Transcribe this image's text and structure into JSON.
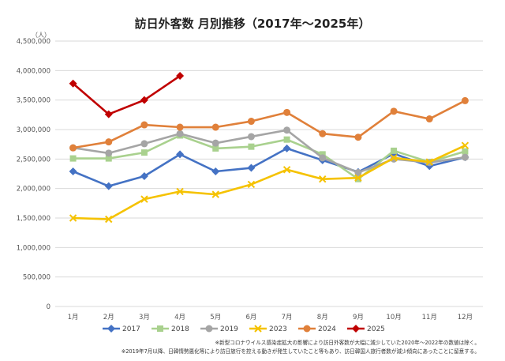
{
  "chart_data": {
    "type": "line",
    "title": "訪日外客数 月別推移（2017年～2025年）",
    "unit_label": "（人）",
    "categories": [
      "1月",
      "2月",
      "3月",
      "4月",
      "5月",
      "6月",
      "7月",
      "8月",
      "9月",
      "10月",
      "11月",
      "12月"
    ],
    "ylim": [
      0,
      4500000
    ],
    "y_ticks": [
      "0",
      "500,000",
      "1,000,000",
      "1,500,000",
      "2,000,000",
      "2,500,000",
      "3,000,000",
      "3,500,000",
      "4,000,000",
      "4,500,000"
    ],
    "grid": true,
    "legend_position": "bottom",
    "series": [
      {
        "name": "2017",
        "color": "#4472c4",
        "marker": "diamond",
        "values": [
          2290000,
          2040000,
          2210000,
          2580000,
          2290000,
          2350000,
          2680000,
          2480000,
          2280000,
          2590000,
          2380000,
          2530000
        ]
      },
      {
        "name": "2018",
        "color": "#a9d18e",
        "marker": "square",
        "values": [
          2510000,
          2510000,
          2610000,
          2900000,
          2680000,
          2710000,
          2830000,
          2580000,
          2160000,
          2640000,
          2450000,
          2630000
        ]
      },
      {
        "name": "2019",
        "color": "#a5a5a5",
        "marker": "circle",
        "values": [
          2690000,
          2600000,
          2760000,
          2930000,
          2770000,
          2880000,
          2990000,
          2520000,
          2270000,
          2500000,
          2440000,
          2530000
        ]
      },
      {
        "name": "2023",
        "color": "#f5c200",
        "marker": "x",
        "values": [
          1500000,
          1480000,
          1820000,
          1950000,
          1900000,
          2070000,
          2320000,
          2160000,
          2180000,
          2520000,
          2450000,
          2730000
        ]
      },
      {
        "name": "2024",
        "color": "#e0803a",
        "marker": "circle",
        "values": [
          2690000,
          2790000,
          3080000,
          3040000,
          3040000,
          3140000,
          3290000,
          2930000,
          2870000,
          3310000,
          3180000,
          3490000
        ]
      },
      {
        "name": "2025",
        "color": "#c00000",
        "marker": "diamond",
        "values": [
          3780000,
          3260000,
          3500000,
          3910000,
          null,
          null,
          null,
          null,
          null,
          null,
          null,
          null
        ]
      }
    ],
    "notes": [
      "※新型コロナウイルス感染症拡大の影響により訪日外客数が大幅に減少していた2020年～2022年の数値は除く。",
      "※2019年7月以降、日韓情勢悪化等により訪日旅行を控える動きが発生していたこと等もあり、訪日韓国人旅行者数が減少傾向にあったことに留意する。"
    ]
  }
}
